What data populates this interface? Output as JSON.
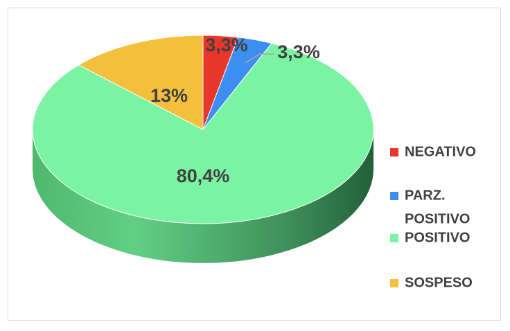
{
  "chart_data": {
    "type": "pie",
    "title": "",
    "slices": [
      {
        "label": "NEGATIVO",
        "value": 3.3,
        "display": "3,3%",
        "color": "#e8372a"
      },
      {
        "label": "PARZ. POSITIVO",
        "legend_lines": [
          "PARZ.",
          "POSITIVO"
        ],
        "value": 3.3,
        "display": "3,3%",
        "color": "#3d8ef2"
      },
      {
        "label": "POSITIVO",
        "value": 80.4,
        "display": "80,4%",
        "color": "#7af4a2"
      },
      {
        "label": "SOSPESO",
        "value": 13,
        "display": "13%",
        "color": "#f4bf3c"
      }
    ],
    "legend_position": "right",
    "style": "3d"
  }
}
